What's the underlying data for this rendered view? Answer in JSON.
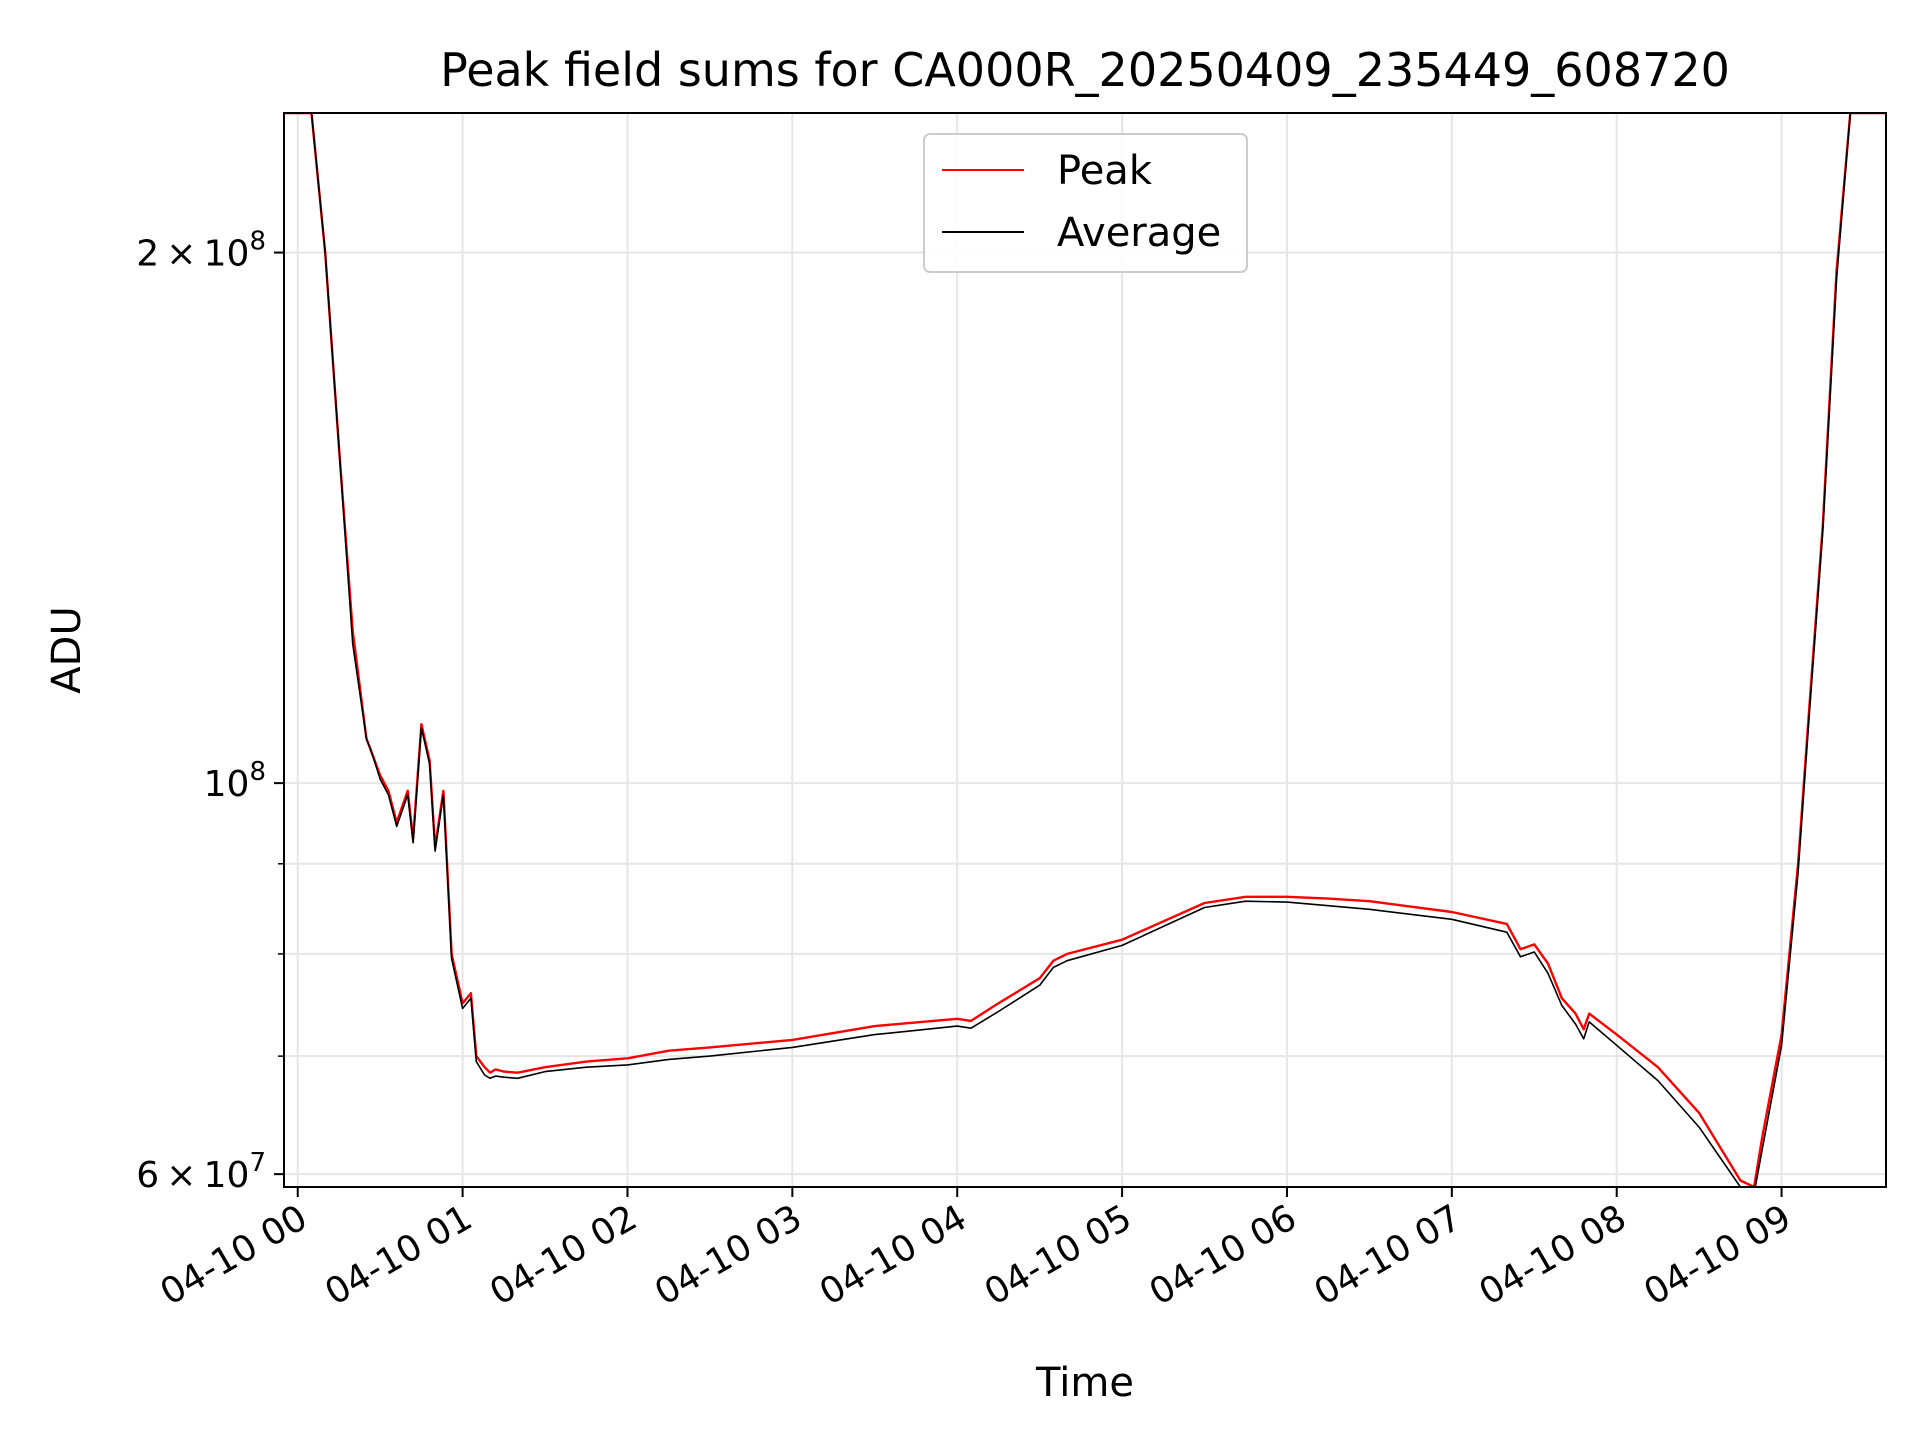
{
  "chart_data": {
    "type": "line",
    "title": "Peak field sums for CA000R_20250409_235449_608720",
    "xlabel": "Time",
    "ylabel": "ADU",
    "yscale": "log",
    "xlim": [
      "2025-04-09 23:55",
      "2025-04-10 09:38"
    ],
    "ylim": [
      59000000,
      240000000
    ],
    "grid": true,
    "legend_placement": "upper center",
    "x_ticks": [
      "04-10 00",
      "04-10 01",
      "04-10 02",
      "04-10 03",
      "04-10 04",
      "04-10 05",
      "04-10 06",
      "04-10 07",
      "04-10 08",
      "04-10 09"
    ],
    "y_major_ticks": [
      {
        "value": 60000000,
        "base": "6",
        "exp": "7",
        "has_mantissa": true
      },
      {
        "value": 100000000,
        "base": "",
        "exp": "8",
        "has_mantissa": false
      },
      {
        "value": 200000000,
        "base": "2",
        "exp": "8",
        "has_mantissa": true
      }
    ],
    "y_minor_ticks": [
      70000000,
      80000000,
      90000000
    ],
    "series": [
      {
        "name": "Peak",
        "color": "#ff0000",
        "x": [
          "2025-04-09 23:55",
          "2025-04-10 00:05",
          "2025-04-10 00:10",
          "2025-04-10 00:15",
          "2025-04-10 00:20",
          "2025-04-10 00:25",
          "2025-04-10 00:27",
          "2025-04-10 00:30",
          "2025-04-10 00:33",
          "2025-04-10 00:36",
          "2025-04-10 00:40",
          "2025-04-10 00:42",
          "2025-04-10 00:45",
          "2025-04-10 00:48",
          "2025-04-10 00:50",
          "2025-04-10 00:53",
          "2025-04-10 00:56",
          "2025-04-10 01:00",
          "2025-04-10 01:03",
          "2025-04-10 01:05",
          "2025-04-10 01:08",
          "2025-04-10 01:10",
          "2025-04-10 01:12",
          "2025-04-10 01:15",
          "2025-04-10 01:20",
          "2025-04-10 01:30",
          "2025-04-10 01:45",
          "2025-04-10 02:00",
          "2025-04-10 02:15",
          "2025-04-10 02:30",
          "2025-04-10 03:00",
          "2025-04-10 03:30",
          "2025-04-10 04:00",
          "2025-04-10 04:05",
          "2025-04-10 04:15",
          "2025-04-10 04:30",
          "2025-04-10 04:35",
          "2025-04-10 04:40",
          "2025-04-10 05:00",
          "2025-04-10 05:30",
          "2025-04-10 05:45",
          "2025-04-10 06:00",
          "2025-04-10 06:15",
          "2025-04-10 06:30",
          "2025-04-10 07:00",
          "2025-04-10 07:20",
          "2025-04-10 07:25",
          "2025-04-10 07:30",
          "2025-04-10 07:35",
          "2025-04-10 07:40",
          "2025-04-10 07:45",
          "2025-04-10 07:48",
          "2025-04-10 07:50",
          "2025-04-10 08:00",
          "2025-04-10 08:15",
          "2025-04-10 08:30",
          "2025-04-10 08:45",
          "2025-04-10 08:50",
          "2025-04-10 08:53",
          "2025-04-10 09:00",
          "2025-04-10 09:06",
          "2025-04-10 09:10",
          "2025-04-10 09:15",
          "2025-04-10 09:20",
          "2025-04-10 09:25",
          "2025-04-10 09:38"
        ],
        "values": [
          240000000,
          240000000,
          200000000,
          155000000,
          122000000,
          106000000,
          104000000,
          101000000,
          99000000,
          95000000,
          99000000,
          93000000,
          108000000,
          103000000,
          92000000,
          99000000,
          80000000,
          75000000,
          76000000,
          70000000,
          69000000,
          68500000,
          68800000,
          68600000,
          68500000,
          69000000,
          69500000,
          69800000,
          70500000,
          70800000,
          71500000,
          72800000,
          73500000,
          73300000,
          75000000,
          77500000,
          79300000,
          80000000,
          81500000,
          85500000,
          86200000,
          86200000,
          86000000,
          85700000,
          84500000,
          83200000,
          80500000,
          81000000,
          79000000,
          75500000,
          74000000,
          72500000,
          74000000,
          72000000,
          69000000,
          65000000,
          59500000,
          59000000,
          63000000,
          72000000,
          90000000,
          110000000,
          140000000,
          195000000,
          240000000,
          240000000
        ]
      },
      {
        "name": "Average",
        "color": "#000000",
        "x": [
          "2025-04-09 23:55",
          "2025-04-10 00:05",
          "2025-04-10 00:10",
          "2025-04-10 00:15",
          "2025-04-10 00:20",
          "2025-04-10 00:25",
          "2025-04-10 00:27",
          "2025-04-10 00:30",
          "2025-04-10 00:33",
          "2025-04-10 00:36",
          "2025-04-10 00:40",
          "2025-04-10 00:42",
          "2025-04-10 00:45",
          "2025-04-10 00:48",
          "2025-04-10 00:50",
          "2025-04-10 00:53",
          "2025-04-10 00:56",
          "2025-04-10 01:00",
          "2025-04-10 01:03",
          "2025-04-10 01:05",
          "2025-04-10 01:08",
          "2025-04-10 01:10",
          "2025-04-10 01:12",
          "2025-04-10 01:15",
          "2025-04-10 01:20",
          "2025-04-10 01:30",
          "2025-04-10 01:45",
          "2025-04-10 02:00",
          "2025-04-10 02:15",
          "2025-04-10 02:30",
          "2025-04-10 03:00",
          "2025-04-10 03:30",
          "2025-04-10 04:00",
          "2025-04-10 04:05",
          "2025-04-10 04:15",
          "2025-04-10 04:30",
          "2025-04-10 04:35",
          "2025-04-10 04:40",
          "2025-04-10 05:00",
          "2025-04-10 05:30",
          "2025-04-10 05:45",
          "2025-04-10 06:00",
          "2025-04-10 06:15",
          "2025-04-10 06:30",
          "2025-04-10 07:00",
          "2025-04-10 07:20",
          "2025-04-10 07:25",
          "2025-04-10 07:30",
          "2025-04-10 07:35",
          "2025-04-10 07:40",
          "2025-04-10 07:45",
          "2025-04-10 07:48",
          "2025-04-10 07:50",
          "2025-04-10 08:00",
          "2025-04-10 08:15",
          "2025-04-10 08:30",
          "2025-04-10 08:45",
          "2025-04-10 08:50",
          "2025-04-10 08:53",
          "2025-04-10 09:00",
          "2025-04-10 09:06",
          "2025-04-10 09:10",
          "2025-04-10 09:15",
          "2025-04-10 09:20",
          "2025-04-10 09:25",
          "2025-04-10 09:38"
        ],
        "values": [
          240000000,
          240000000,
          200000000,
          155000000,
          120000000,
          106000000,
          104000000,
          100500000,
          98500000,
          94500000,
          98500000,
          92500000,
          107500000,
          102500000,
          91500000,
          98500000,
          79500000,
          74500000,
          75500000,
          69500000,
          68300000,
          68000000,
          68200000,
          68100000,
          68000000,
          68600000,
          69000000,
          69200000,
          69700000,
          70000000,
          70800000,
          72000000,
          72800000,
          72600000,
          74200000,
          76800000,
          78600000,
          79300000,
          80900000,
          85000000,
          85700000,
          85600000,
          85200000,
          84800000,
          83700000,
          82300000,
          79700000,
          80200000,
          78000000,
          74800000,
          73000000,
          71600000,
          73200000,
          71000000,
          67800000,
          63800000,
          59000000,
          58500000,
          62000000,
          71000000,
          89000000,
          109000000,
          139000000,
          193000000,
          240000000,
          240000000
        ]
      }
    ]
  }
}
